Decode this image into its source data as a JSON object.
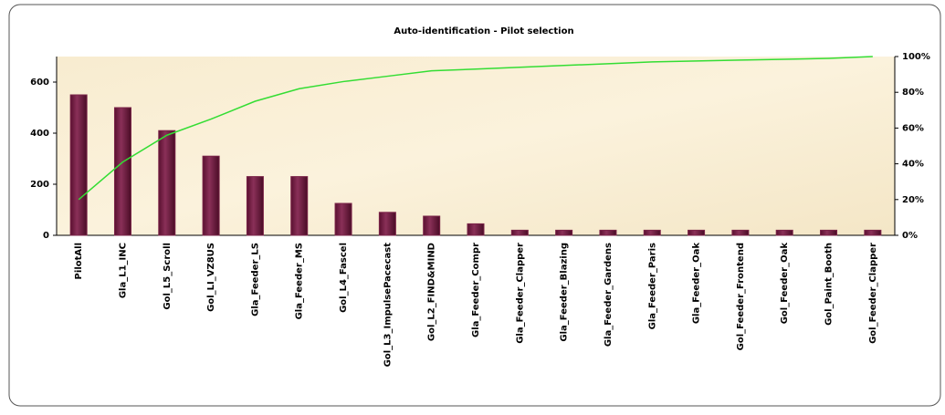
{
  "chart_data": {
    "type": "bar",
    "title": "Auto-identification - Pilot selection",
    "categories": [
      "PilotAll",
      "Gla_L1_INC",
      "Gol_L5_Scroll",
      "Gol_LI_VZ8US",
      "Gla_Feeder_LS",
      "Gla_Feeder_MS",
      "Gol_L4_Fascel",
      "Gol_L3_ImpulsePacecast",
      "Gol_L2_FIND&MIND",
      "Gla_Feeder_Compr",
      "Gla_Feeder_Clapper",
      "Gla_Feeder_Blazing",
      "Gla_Feeder_Gardens",
      "Gla_Feeder_Paris",
      "Gla_Feeder_Oak",
      "Gol_Feeder_Frontend",
      "Gol_Feeder_Oak",
      "Gol_Paint_Booth",
      "Gol_Feeder_Clapper"
    ],
    "series": [
      {
        "color": "#7a2448",
        "values": [
          550,
          500,
          410,
          310,
          230,
          230,
          125,
          90,
          75,
          45,
          20,
          20,
          20,
          20,
          20,
          20,
          20,
          20,
          20
        ]
      },
      {
        "color": "#33dd33",
        "axis": "y2",
        "line": true,
        "values": [
          20,
          41,
          56,
          65,
          75,
          82,
          86,
          89,
          92,
          93,
          94,
          95,
          96,
          97,
          97.5,
          98,
          98.5,
          99,
          100
        ]
      }
    ],
    "ylim": [
      0,
      700
    ],
    "yticks": [
      0,
      200,
      400,
      600
    ],
    "y2lim": [
      0,
      100
    ],
    "y2ticks": [
      {
        "value": 0,
        "label": "0%"
      },
      {
        "value": 20,
        "label": "20%"
      },
      {
        "value": 40,
        "label": "40%"
      },
      {
        "value": 60,
        "label": "60%"
      },
      {
        "value": 80,
        "label": "80%"
      },
      {
        "value": 100,
        "label": "100%"
      }
    ]
  }
}
